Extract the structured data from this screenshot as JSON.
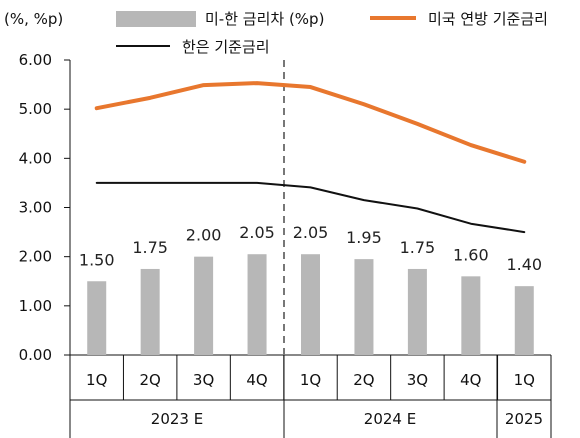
{
  "chart_data": {
    "type": "bar",
    "unit_label": "(%, %p)",
    "categories": [
      "1Q",
      "2Q",
      "3Q",
      "4Q",
      "1Q",
      "2Q",
      "3Q",
      "4Q",
      "1Q"
    ],
    "groups": [
      {
        "label": "2023 E"
      },
      {
        "label": "2024 E"
      },
      {
        "label": "2025"
      }
    ],
    "y_ticks": [
      "6.00",
      "5.00",
      "4.00",
      "3.00",
      "2.00",
      "1.00",
      "0.00"
    ],
    "ylim": [
      0,
      6
    ],
    "series": [
      {
        "name": "미-한 금리차 (%p)",
        "type": "bar",
        "color": "#b7b7b7",
        "values": [
          1.5,
          1.75,
          2.0,
          2.05,
          2.05,
          1.95,
          1.75,
          1.6,
          1.4
        ],
        "labels": [
          "1.50",
          "1.75",
          "2.00",
          "2.05",
          "2.05",
          "1.95",
          "1.75",
          "1.60",
          "1.40"
        ]
      },
      {
        "name": "미국 연방 기준금리",
        "type": "line",
        "color": "#e8772e",
        "values": [
          5.02,
          5.23,
          5.49,
          5.53,
          5.45,
          5.1,
          4.7,
          4.27,
          3.93
        ]
      },
      {
        "name": "한은 기준금리",
        "type": "line",
        "color": "#111111",
        "values": [
          3.5,
          3.5,
          3.5,
          3.5,
          3.41,
          3.15,
          2.98,
          2.67,
          2.5
        ]
      }
    ],
    "grid": false,
    "legend_position": "top"
  }
}
